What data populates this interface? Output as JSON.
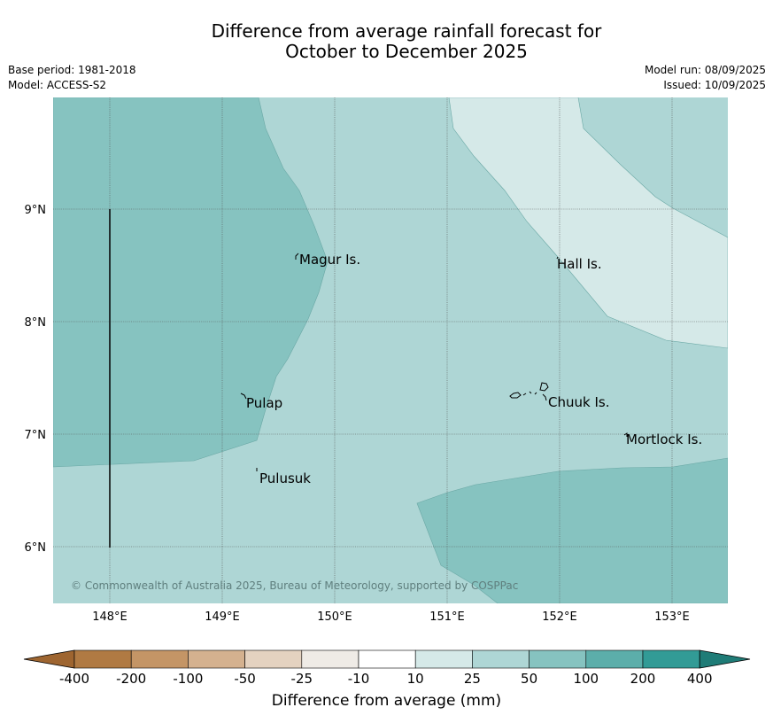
{
  "title": {
    "line1": "Difference from average rainfall forecast for",
    "line2": "October to December 2025"
  },
  "meta": {
    "base_period": "Base period: 1981-2018",
    "model": "Model: ACCESS-S2",
    "model_run": "Model run: 08/09/2025",
    "issued": "Issued: 10/09/2025"
  },
  "map": {
    "lon_ticks": [
      "148°E",
      "149°E",
      "150°E",
      "151°E",
      "152°E",
      "153°E"
    ],
    "lat_ticks": [
      "9°N",
      "8°N",
      "7°N",
      "6°N"
    ],
    "places": {
      "magur": "Magur Is.",
      "hall": "Hall Is.",
      "pulap": "Pulap",
      "chuuk": "Chuuk Is.",
      "mortlock": "Mortlock Is.",
      "pulusuk": "Pulusuk"
    },
    "copyright": "© Commonwealth of Australia 2025, Bureau of Meteorology, supported by COSPPac",
    "colors": {
      "50_to_100": "#86c3c0",
      "25_to_50": "#aed6d5",
      "10_to_25": "#d5e9e8"
    }
  },
  "colorbar": {
    "labels": [
      "-400",
      "-200",
      "-100",
      "-50",
      "-25",
      "-10",
      "10",
      "25",
      "50",
      "100",
      "200",
      "400"
    ],
    "colors": {
      "below_-400": "#9e6530",
      "-400_to_-200": "#b07a43",
      "-200_to_-100": "#c49566",
      "-100_to_-50": "#d4b18f",
      "-50_to_-25": "#e4d2c0",
      "-25_to_-10": "#efebe6",
      "-10_to_10": "#ffffff",
      "10_to_25": "#d5e9e8",
      "25_to_50": "#aed6d5",
      "50_to_100": "#86c3c0",
      "100_to_200": "#5caeaa",
      "200_to_400": "#329b96",
      "above_400": "#1f7c77"
    },
    "title": "Difference from average (mm)"
  }
}
